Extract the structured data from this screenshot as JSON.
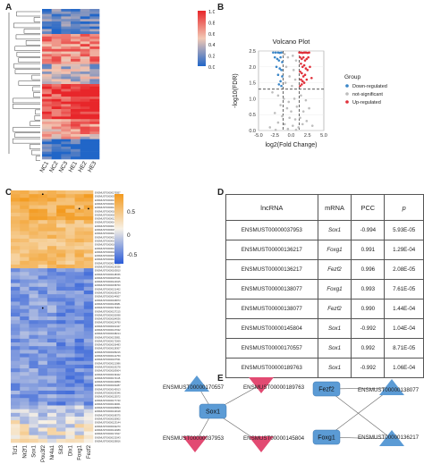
{
  "panels": {
    "a": "A",
    "b": "B",
    "c": "C",
    "d": "D",
    "e": "E"
  },
  "panel_a": {
    "samples": [
      "NC1",
      "NC2",
      "NC3",
      "HE1",
      "HE2",
      "HE3"
    ],
    "color_scale": {
      "ticks": [
        "1.0",
        "0.8",
        "0.6",
        "0.4",
        "0.2",
        "0.0"
      ],
      "colors": [
        "#e8262a",
        "#f2c8b4",
        "#2166c8"
      ]
    }
  },
  "chart_data": [
    {
      "type": "scatter",
      "title": "Volcano Plot",
      "xlabel": "log2(Fold Change)",
      "ylabel": "-log10(FDR)",
      "xlim": [
        -4,
        4
      ],
      "ylim": [
        0,
        2.5
      ],
      "xticks": [
        "-5.0",
        "-2.5",
        "0.0",
        "2.5",
        "5.0"
      ],
      "yticks": [
        "0.0",
        "0.5",
        "1.0",
        "1.5",
        "2.0",
        "2.5"
      ],
      "legend_title": "Group",
      "legend_position": "right",
      "threshold_lines": {
        "y": 1.3,
        "x": [
          -1,
          1
        ]
      },
      "series": [
        {
          "name": "Down-regulated",
          "color": "#3a86c8",
          "points": [
            [
              -2.2,
              2.45
            ],
            [
              -1.9,
              2.45
            ],
            [
              -1.6,
              2.45
            ],
            [
              -1.4,
              2.44
            ],
            [
              -1.2,
              2.45
            ],
            [
              -2.0,
              2.3
            ],
            [
              -1.7,
              2.25
            ],
            [
              -1.5,
              2.2
            ],
            [
              -1.3,
              2.3
            ],
            [
              -1.1,
              2.15
            ],
            [
              -1.8,
              2.0
            ],
            [
              -1.4,
              1.95
            ],
            [
              -1.2,
              1.9
            ],
            [
              -1.6,
              1.75
            ],
            [
              -1.1,
              1.7
            ],
            [
              -1.3,
              1.55
            ],
            [
              -1.5,
              1.45
            ],
            [
              -1.2,
              1.4
            ]
          ]
        },
        {
          "name": "not-significant",
          "color": "#bdbdbd",
          "points": [
            [
              -0.8,
              2.4
            ],
            [
              -0.4,
              2.3
            ],
            [
              0.2,
              2.35
            ],
            [
              0.6,
              2.2
            ],
            [
              -0.6,
              2.0
            ],
            [
              0.3,
              1.9
            ],
            [
              -0.2,
              1.7
            ],
            [
              0.5,
              1.6
            ],
            [
              -0.7,
              1.5
            ],
            [
              0.1,
              1.4
            ],
            [
              -2.3,
              1.2
            ],
            [
              -1.6,
              1.1
            ],
            [
              -0.9,
              1.0
            ],
            [
              -0.3,
              0.9
            ],
            [
              0.4,
              1.0
            ],
            [
              1.2,
              1.1
            ],
            [
              1.8,
              0.95
            ],
            [
              -1.3,
              0.8
            ],
            [
              -0.5,
              0.7
            ],
            [
              0.0,
              0.6
            ],
            [
              0.7,
              0.75
            ],
            [
              1.5,
              0.6
            ],
            [
              2.2,
              0.7
            ],
            [
              -2.0,
              0.55
            ],
            [
              -1.1,
              0.45
            ],
            [
              -0.2,
              0.4
            ],
            [
              0.5,
              0.35
            ],
            [
              1.1,
              0.4
            ],
            [
              1.9,
              0.3
            ],
            [
              -1.6,
              0.25
            ],
            [
              -0.8,
              0.2
            ],
            [
              0.2,
              0.15
            ],
            [
              0.9,
              0.1
            ],
            [
              1.4,
              0.2
            ],
            [
              -0.4,
              0.05
            ],
            [
              0.6,
              0.02
            ],
            [
              2.6,
              0.15
            ],
            [
              -2.6,
              0.1
            ],
            [
              -1.9,
              0.02
            ]
          ]
        },
        {
          "name": "Up-regulated",
          "color": "#e0303a",
          "points": [
            [
              1.0,
              2.45
            ],
            [
              1.2,
              2.45
            ],
            [
              1.4,
              2.44
            ],
            [
              1.6,
              2.45
            ],
            [
              1.8,
              2.45
            ],
            [
              2.0,
              2.44
            ],
            [
              2.2,
              2.45
            ],
            [
              1.1,
              2.3
            ],
            [
              1.3,
              2.25
            ],
            [
              1.5,
              2.3
            ],
            [
              1.7,
              2.2
            ],
            [
              1.9,
              2.25
            ],
            [
              2.1,
              2.3
            ],
            [
              1.2,
              2.1
            ],
            [
              1.4,
              2.0
            ],
            [
              1.6,
              2.05
            ],
            [
              1.8,
              1.95
            ],
            [
              2.0,
              1.9
            ],
            [
              2.3,
              2.0
            ],
            [
              1.1,
              1.85
            ],
            [
              1.3,
              1.8
            ],
            [
              1.5,
              1.7
            ],
            [
              1.7,
              1.75
            ],
            [
              1.2,
              1.6
            ],
            [
              1.4,
              1.55
            ],
            [
              1.6,
              1.5
            ],
            [
              1.9,
              1.6
            ],
            [
              1.3,
              1.45
            ],
            [
              1.1,
              1.4
            ],
            [
              2.5,
              1.65
            ]
          ]
        }
      ]
    }
  ],
  "panel_c": {
    "genes": [
      "Tcf1",
      "Nr2f1",
      "Sox1",
      "Pou3f2",
      "Nr4a1",
      "Sit3",
      "Dlx1",
      "Foxg1",
      "Fezf2"
    ],
    "color_scale": {
      "ticks": [
        "0.5",
        "0",
        "-0.5"
      ],
      "colors": [
        "#f39a1e",
        "#f7f1e6",
        "#2a5bd8"
      ]
    },
    "lncrna_ids": [
      "ENSMUST00000170557",
      "ENSMUST00000037953",
      "ENSMUST00000136217",
      "ENSMUST00000138077",
      "ENSMUST00000145804",
      "ENSMUST00000189763",
      "ENSMUST00000201843",
      "ENSMUST00000120477",
      "ENSMUST00000146312",
      "ENSMUST00000178892",
      "ENSMUST00000154421",
      "ENSMUST00000143387",
      "ENSMUST00000127749",
      "ENSMUST00000191102",
      "ENSMUST00000164588",
      "ENSMUST00000135074",
      "ENSMUST00000182236",
      "ENSMUST00000152019",
      "ENSMUST00000140923",
      "ENSMUST00000176655",
      "ENSMUST00000129338",
      "ENSMUST00000163810",
      "ENSMUST00000148156",
      "ENSMUST00000187041",
      "ENSMUST00000122915",
      "ENSMUST00000158760",
      "ENSMUST00000131462",
      "ENSMUST00000169234",
      "ENSMUST00000144507",
      "ENSMUST00000195873",
      "ENSMUST00000126681",
      "ENSMUST00000179402",
      "ENSMUST00000137215",
      "ENSMUST00000150098",
      "ENSMUST00000184536",
      "ENSMUST00000124790",
      "ENSMUST00000161347",
      "ENSMUST00000147632",
      "ENSMUST00000198214",
      "ENSMUST00000133851",
      "ENSMUST00000172069",
      "ENSMUST00000156483",
      "ENSMUST00000128307",
      "ENSMUST00000189216",
      "ENSMUST00000141750",
      "ENSMUST00000167531",
      "ENSMUST00000121986",
      "ENSMUST00000153278",
      "ENSMUST00000183604",
      "ENSMUST00000139422",
      "ENSMUST00000174115",
      "ENSMUST00000130859",
      "ENSMUST00000160287",
      "ENSMUST00000145913",
      "ENSMUST00000193346",
      "ENSMUST00000125572",
      "ENSMUST00000177740",
      "ENSMUST00000149061",
      "ENSMUST00000186893",
      "ENSMUST00000134618",
      "ENSMUST00000168375",
      "ENSMUST00000155902",
      "ENSMUST00000123144",
      "ENSMUST00000192270",
      "ENSMUST00000142689",
      "ENSMUST00000171527",
      "ENSMUST00000132043",
      "ENSMUST00000159816"
    ]
  },
  "panel_d": {
    "headers": {
      "lncrna": "lncRNA",
      "mrna": "mRNA",
      "pcc": "PCC",
      "p": "p"
    },
    "rows": [
      {
        "lncrna": "ENSMUST00000037953",
        "mrna": "Sox1",
        "pcc": "-0.994",
        "p": "5.93E-05"
      },
      {
        "lncrna": "ENSMUST00000136217",
        "mrna": "Foxg1",
        "pcc": "0.991",
        "p": "1.29E-04"
      },
      {
        "lncrna": "ENSMUST00000136217",
        "mrna": "Fezf2",
        "pcc": "0.996",
        "p": "2.08E-05"
      },
      {
        "lncrna": "ENSMUST00000138077",
        "mrna": "Foxg1",
        "pcc": "0.993",
        "p": "7.61E-05"
      },
      {
        "lncrna": "ENSMUST00000138077",
        "mrna": "Fezf2",
        "pcc": "0.990",
        "p": "1.44E-04"
      },
      {
        "lncrna": "ENSMUST00000145804",
        "mrna": "Sox1",
        "pcc": "-0.992",
        "p": "1.04E-04"
      },
      {
        "lncrna": "ENSMUST00000170557",
        "mrna": "Sox1",
        "pcc": "0.992",
        "p": "8.71E-05"
      },
      {
        "lncrna": "ENSMUST00000189763",
        "mrna": "Sox1",
        "pcc": "-0.992",
        "p": "1.06E-04"
      }
    ]
  },
  "panel_e": {
    "hubs": {
      "sox1": "Sox1",
      "fezf2": "Fezf2",
      "foxg1": "Foxg1"
    },
    "nodes": {
      "n170557": "ENSMUST00000170557",
      "n189763": "ENSMUST00000189763",
      "n037953": "ENSMUST00000037953",
      "n145804": "ENSMUST00000145804",
      "n138077": "ENSMUST00000138077",
      "n136217": "ENSMUST00000136217"
    },
    "colors": {
      "hub": "#5b9bd5",
      "up": "#5b9bd5",
      "down": "#e24a72"
    }
  }
}
